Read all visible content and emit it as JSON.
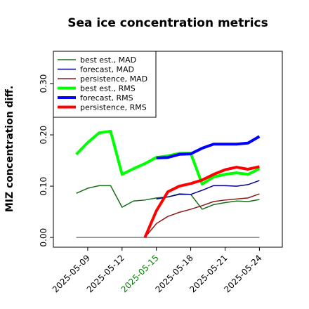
{
  "chart_data": {
    "type": "line",
    "title": "Sea ice concentration metrics",
    "y_label": "MIZ concentration diff.",
    "x": [
      "2025-05-08",
      "2025-05-09",
      "2025-05-10",
      "2025-05-11",
      "2025-05-12",
      "2025-05-13",
      "2025-05-14",
      "2025-05-15",
      "2025-05-16",
      "2025-05-17",
      "2025-05-18",
      "2025-05-19",
      "2025-05-20",
      "2025-05-21",
      "2025-05-22",
      "2025-05-23",
      "2025-05-24"
    ],
    "xlim": [
      "2025-05-06",
      "2025-05-26"
    ],
    "xticks": [
      "2025-05-09",
      "2025-05-12",
      "2025-05-15",
      "2025-05-18",
      "2025-05-21",
      "2025-05-24"
    ],
    "xtick_colors": [
      "#000000",
      "#000000",
      "#008000",
      "#000000",
      "#000000",
      "#000000"
    ],
    "ylim": [
      -0.019,
      0.363
    ],
    "yticks": [
      {
        "value": 0,
        "label": "0.00"
      },
      {
        "value": 0.1,
        "label": "0.10"
      },
      {
        "value": 0.2,
        "label": "0.20"
      },
      {
        "value": 0.3,
        "label": "0.30"
      }
    ],
    "legend": "upper left",
    "series": [
      {
        "color": "#808080",
        "linewidth": 1.5,
        "values": [
          0,
          0,
          0,
          0,
          0,
          0,
          0,
          0,
          0,
          0,
          0,
          0,
          0,
          0,
          0,
          0,
          0
        ]
      },
      {
        "name": "best est., MAD",
        "color": "#1a6e1a",
        "linewidth": 1.5,
        "values": [
          0.086,
          0.096,
          0.101,
          0.101,
          0.059,
          0.071,
          0.073,
          0.077,
          0.079,
          0.085,
          0.084,
          0.055,
          0.064,
          0.068,
          0.071,
          0.07,
          0.074
        ]
      },
      {
        "name": "forecast,  MAD",
        "color": "#00008b",
        "linewidth": 1.5,
        "values": [
          null,
          null,
          null,
          null,
          null,
          null,
          null,
          0.075,
          0.079,
          0.084,
          0.084,
          0.092,
          0.101,
          0.101,
          0.1,
          0.103,
          0.111
        ]
      },
      {
        "name": "persistence, MAD",
        "color": "#8b1a1a",
        "linewidth": 1.5,
        "values": [
          null,
          null,
          null,
          null,
          null,
          null,
          0,
          0.027,
          0.041,
          0.049,
          0.055,
          0.062,
          0.07,
          0.073,
          0.075,
          0.077,
          0.085
        ]
      },
      {
        "name": "best est., RMS",
        "color": "#00ff00",
        "linewidth": 4,
        "values": [
          0.162,
          0.185,
          0.204,
          0.207,
          0.123,
          0.134,
          0.144,
          0.156,
          0.159,
          0.164,
          0.164,
          0.104,
          0.118,
          0.123,
          0.126,
          0.123,
          0.134
        ]
      },
      {
        "name": "forecast,  RMS",
        "color": "#0000ff",
        "linewidth": 4,
        "values": [
          null,
          null,
          null,
          null,
          null,
          null,
          null,
          0.155,
          0.156,
          0.162,
          0.163,
          0.174,
          0.182,
          0.182,
          0.182,
          0.184,
          0.197
        ]
      },
      {
        "name": "persistence, RMS",
        "color": "#ff0000",
        "linewidth": 4,
        "values": [
          null,
          null,
          null,
          null,
          null,
          null,
          0,
          0.052,
          0.089,
          0.1,
          0.105,
          0.112,
          0.123,
          0.132,
          0.137,
          0.133,
          0.138
        ]
      }
    ]
  }
}
